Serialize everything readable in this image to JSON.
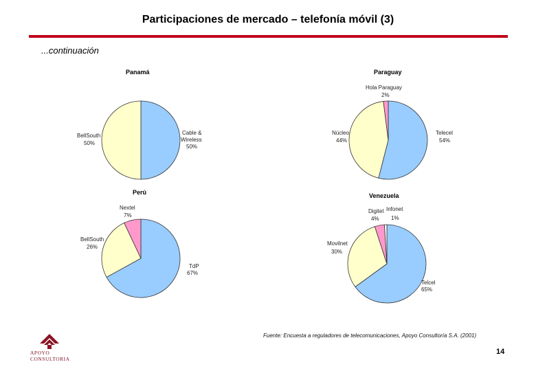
{
  "page": {
    "title": "Participaciones de mercado – telefonía móvil (3)",
    "subtitle": "...continuación",
    "source": "Fuente: Encuesta a reguladores de telecomunicaciones, Apoyo Consultoría S.A. (2001)",
    "page_number": "14",
    "logo": {
      "line1": "APOYO",
      "line2": "CONSULTORIA",
      "color": "#8a1424"
    }
  },
  "colors": {
    "blue": "#99ccff",
    "yellow": "#ffffcc",
    "pink": "#ff99cc",
    "rule": "#c0001a"
  },
  "chart_data": [
    {
      "type": "pie",
      "title": "Panamá",
      "slices": [
        {
          "label": [
            "Cable &",
            "Wireless"
          ],
          "value": 50,
          "pct": "50%",
          "color": "#99ccff"
        },
        {
          "label": [
            "BellSouth"
          ],
          "value": 50,
          "pct": "50%",
          "color": "#ffffcc"
        }
      ]
    },
    {
      "type": "pie",
      "title": "Paraguay",
      "slices": [
        {
          "label": [
            "Telecel"
          ],
          "value": 54,
          "pct": "54%",
          "color": "#99ccff"
        },
        {
          "label": [
            "Núcleo"
          ],
          "value": 44,
          "pct": "44%",
          "color": "#ffffcc"
        },
        {
          "label": [
            "Hola Paraguay"
          ],
          "value": 2,
          "pct": "2%",
          "color": "#ff99cc"
        }
      ]
    },
    {
      "type": "pie",
      "title": "Perú",
      "slices": [
        {
          "label": [
            "TdP"
          ],
          "value": 67,
          "pct": "67%",
          "color": "#99ccff"
        },
        {
          "label": [
            "BellSouth"
          ],
          "value": 26,
          "pct": "26%",
          "color": "#ffffcc"
        },
        {
          "label": [
            "Nextel"
          ],
          "value": 7,
          "pct": "7%",
          "color": "#ff99cc"
        }
      ]
    },
    {
      "type": "pie",
      "title": "Venezuela",
      "slices": [
        {
          "label": [
            "Telcel"
          ],
          "value": 65,
          "pct": "65%",
          "color": "#99ccff"
        },
        {
          "label": [
            "Movilnet"
          ],
          "value": 30,
          "pct": "30%",
          "color": "#ffffcc"
        },
        {
          "label": [
            "Digitel"
          ],
          "value": 4,
          "pct": "4%",
          "color": "#ff99cc"
        },
        {
          "label": [
            "Infonet"
          ],
          "value": 1,
          "pct": "1%",
          "color": "#ffffff"
        }
      ]
    }
  ]
}
